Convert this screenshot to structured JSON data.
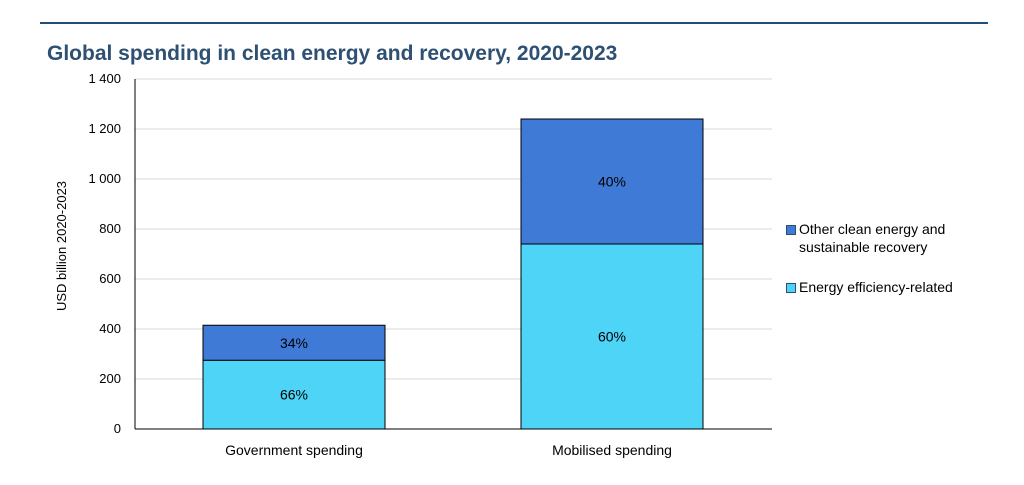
{
  "title": "Global spending in clean energy and recovery, 2020-2023",
  "chart_data": {
    "type": "bar",
    "stacked": true,
    "title": "Global spending in clean energy and recovery, 2020-2023",
    "xlabel": "",
    "ylabel": "USD billion 2020-2023",
    "ylim": [
      0,
      1400
    ],
    "yticks": [
      0,
      200,
      400,
      600,
      800,
      1000,
      1200,
      1400
    ],
    "ytick_labels": [
      "0",
      "200",
      "400",
      "600",
      "800",
      "1 000",
      "1 200",
      "1 400"
    ],
    "grid": true,
    "legend_position": "right",
    "categories": [
      "Government spending",
      "Mobilised spending"
    ],
    "series": [
      {
        "name": "Energy efficiency-related",
        "color": "#4dd4f7",
        "values": [
          275,
          740
        ],
        "labels": [
          "66%",
          "60%"
        ]
      },
      {
        "name": "Other clean energy and sustainable recovery",
        "color": "#3f7ad6",
        "values": [
          140,
          500
        ],
        "labels": [
          "34%",
          "40%"
        ]
      }
    ]
  },
  "legend": {
    "items": [
      {
        "label": "Other clean energy and sustainable recovery",
        "color": "#3f7ad6"
      },
      {
        "label": "Energy efficiency-related",
        "color": "#4dd4f7"
      }
    ]
  }
}
